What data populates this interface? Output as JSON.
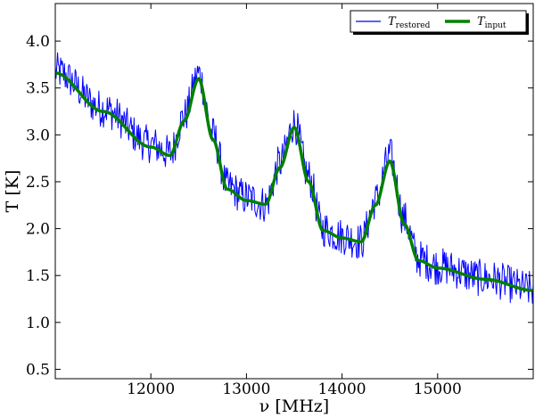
{
  "chart_data": {
    "type": "line",
    "title": "",
    "xlabel": "ν [MHz]",
    "ylabel": "T [K]",
    "xlim": [
      11000,
      16000
    ],
    "ylim": [
      0.4,
      4.4
    ],
    "xticks": [
      12000,
      13000,
      14000,
      15000
    ],
    "xtick_labels": [
      "12000",
      "13000",
      "14000",
      "15000"
    ],
    "yticks": [
      0.5,
      1.0,
      1.5,
      2.0,
      2.5,
      3.0,
      3.5,
      4.0
    ],
    "ytick_labels": [
      "0.5",
      "1.0",
      "1.5",
      "2.0",
      "2.5",
      "3.0",
      "3.5",
      "4.0"
    ],
    "grid": false,
    "legend_position": "top-right",
    "series": [
      {
        "name": "T_restored",
        "legend_main": "T",
        "legend_sub": "restored",
        "color": "#0000ff",
        "style": "noisy-band",
        "x": [
          11000,
          11500,
          12000,
          12200,
          12350,
          12500,
          12650,
          12800,
          13000,
          13200,
          13350,
          13500,
          13650,
          13800,
          14000,
          14200,
          14350,
          14500,
          14650,
          14800,
          15000,
          15500,
          16000
        ],
        "y": [
          3.68,
          3.28,
          2.9,
          2.8,
          3.2,
          3.65,
          3.0,
          2.45,
          2.33,
          2.26,
          2.7,
          3.12,
          2.55,
          2.0,
          1.92,
          1.86,
          2.3,
          2.78,
          2.1,
          1.68,
          1.6,
          1.47,
          1.35
        ],
        "noise_amplitude": 0.2
      },
      {
        "name": "T_input",
        "legend_main": "T",
        "legend_sub": "input",
        "color": "#008000",
        "style": "thick-line",
        "x": [
          11000,
          11500,
          12000,
          12200,
          12350,
          12500,
          12650,
          12800,
          13000,
          13200,
          13350,
          13500,
          13650,
          13800,
          14000,
          14200,
          14350,
          14500,
          14650,
          14800,
          15000,
          15500,
          16000
        ],
        "y": [
          3.66,
          3.25,
          2.87,
          2.78,
          3.15,
          3.6,
          2.95,
          2.42,
          2.3,
          2.26,
          2.65,
          3.08,
          2.5,
          1.98,
          1.9,
          1.86,
          2.25,
          2.72,
          2.05,
          1.66,
          1.58,
          1.46,
          1.34
        ]
      }
    ]
  }
}
